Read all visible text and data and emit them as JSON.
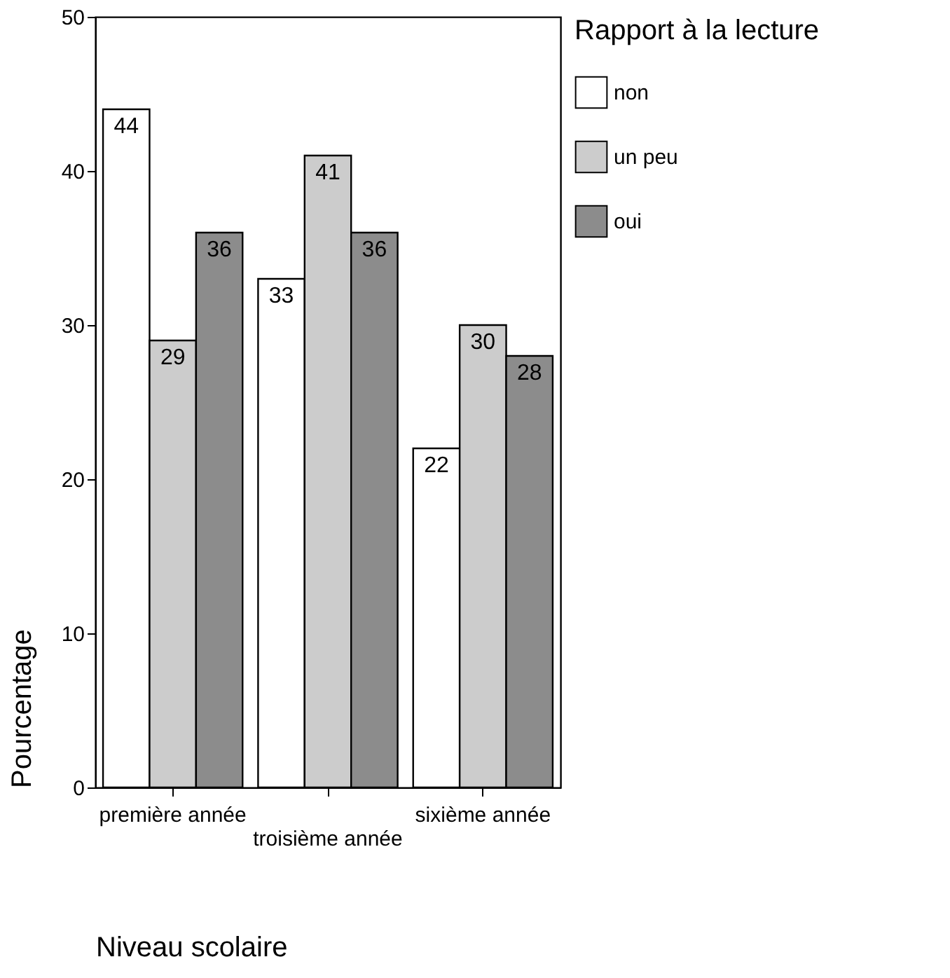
{
  "chart_data": {
    "type": "bar",
    "xlabel": "Niveau scolaire",
    "ylabel": "Pourcentage",
    "legend_title": "Rapport à la lecture",
    "categories": [
      "première année",
      "troisième année",
      "sixième année"
    ],
    "series": [
      {
        "name": "non",
        "color": "#ffffff",
        "values": [
          44,
          33,
          22
        ]
      },
      {
        "name": "un peu",
        "color": "#cccccc",
        "values": [
          29,
          41,
          30
        ]
      },
      {
        "name": "oui",
        "color": "#8c8c8c",
        "values": [
          36,
          36,
          28
        ]
      }
    ],
    "ylim": [
      0,
      50
    ],
    "yticks": [
      0,
      10,
      20,
      30,
      40,
      50
    ],
    "grid": false,
    "legend": "right",
    "data_labels": true
  }
}
